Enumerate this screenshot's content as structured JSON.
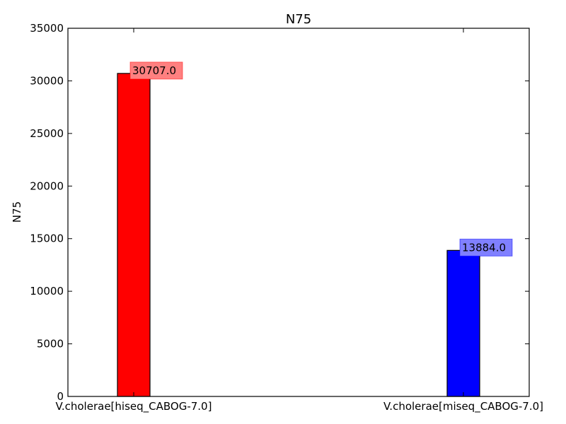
{
  "chart_data": {
    "type": "bar",
    "title": "N75",
    "xlabel": "",
    "ylabel": "N75",
    "ylim": [
      0,
      35000
    ],
    "yticks": [
      0,
      5000,
      10000,
      15000,
      20000,
      25000,
      30000,
      35000
    ],
    "yticklabels": [
      "0",
      "5000",
      "10000",
      "15000",
      "20000",
      "25000",
      "30000",
      "35000"
    ],
    "categories": [
      "V.cholerae[hiseq_CABOG-7.0]",
      "V.cholerae[miseq_CABOG-7.0]"
    ],
    "values": [
      30707.0,
      13884.0
    ],
    "data_labels": [
      "30707.0",
      "13884.0"
    ],
    "colors": [
      "#ff0000",
      "#0000ff"
    ],
    "label_box_colors": [
      "#ff8080",
      "#8080ff"
    ],
    "grid": false,
    "legend": "none"
  }
}
